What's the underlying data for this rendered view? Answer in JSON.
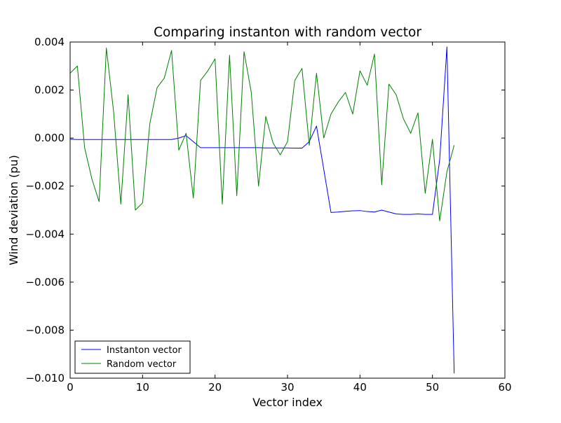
{
  "chart_data": {
    "type": "line",
    "title": "Comparing instanton with random vector",
    "xlabel": "Vector index",
    "ylabel": "Wind deviation (pu)",
    "xlim": [
      0,
      60
    ],
    "ylim": [
      -0.01,
      0.004
    ],
    "xticks": [
      0,
      10,
      20,
      30,
      40,
      50,
      60
    ],
    "xtick_labels": [
      "0",
      "10",
      "20",
      "30",
      "40",
      "50",
      "60"
    ],
    "yticks": [
      0.004,
      0.002,
      0.0,
      -0.002,
      -0.004,
      -0.006,
      -0.008,
      -0.01
    ],
    "ytick_labels": [
      "0.004",
      "0.002",
      "0.000",
      "−0.002",
      "−0.004",
      "−0.006",
      "−0.008",
      "−0.010"
    ],
    "grid": false,
    "legend_position": "lower-left",
    "series": [
      {
        "name": "Instanton vector",
        "color": "#0000ff",
        "x": [
          0,
          1,
          2,
          3,
          4,
          5,
          6,
          7,
          8,
          9,
          10,
          11,
          12,
          13,
          14,
          15,
          16,
          17,
          18,
          19,
          20,
          21,
          22,
          23,
          24,
          25,
          26,
          27,
          28,
          29,
          30,
          31,
          32,
          33,
          34,
          35,
          36,
          37,
          38,
          39,
          40,
          41,
          42,
          43,
          44,
          45,
          46,
          47,
          48,
          49,
          50,
          51,
          52,
          53
        ],
        "values": [
          -5e-05,
          -6e-05,
          -6e-05,
          -6e-05,
          -6e-05,
          -6e-05,
          -6e-05,
          -6e-05,
          -6e-05,
          -6e-05,
          -6e-05,
          -6e-05,
          -6e-05,
          -6e-05,
          -6e-05,
          0.0,
          0.0001,
          -0.00015,
          -0.0004,
          -0.0004,
          -0.0004,
          -0.0004,
          -0.0004,
          -0.0004,
          -0.0004,
          -0.0004,
          -0.0004,
          -0.00041,
          -0.00041,
          -0.00041,
          -0.00041,
          -0.00042,
          -0.00042,
          -0.00015,
          0.0005,
          -0.0013,
          -0.0031,
          -0.00308,
          -0.00305,
          -0.00303,
          -0.00302,
          -0.00306,
          -0.00308,
          -0.003,
          -0.00308,
          -0.00316,
          -0.00318,
          -0.00318,
          -0.00316,
          -0.00318,
          -0.00318,
          -0.0009,
          0.0038,
          -0.0098
        ]
      },
      {
        "name": "Random vector",
        "color": "#008000",
        "x": [
          0,
          1,
          2,
          3,
          4,
          5,
          6,
          7,
          8,
          9,
          10,
          11,
          12,
          13,
          14,
          15,
          16,
          17,
          18,
          19,
          20,
          21,
          22,
          23,
          24,
          25,
          26,
          27,
          28,
          29,
          30,
          31,
          32,
          33,
          34,
          35,
          36,
          37,
          38,
          39,
          40,
          41,
          42,
          43,
          44,
          45,
          46,
          47,
          48,
          49,
          50,
          51,
          52,
          53
        ],
        "values": [
          0.0027,
          0.003,
          -0.0004,
          -0.0017,
          -0.00265,
          0.00375,
          0.0011,
          -0.00275,
          0.0018,
          -0.003,
          -0.0027,
          0.0006,
          0.0021,
          0.0025,
          0.00365,
          -0.0005,
          0.0002,
          -0.0025,
          0.0024,
          0.0028,
          0.0033,
          -0.00275,
          0.00345,
          -0.0024,
          0.0036,
          0.0019,
          -0.002,
          0.0009,
          -0.0002,
          -0.0007,
          -0.00015,
          0.0024,
          0.0029,
          -0.0003,
          0.0027,
          0.0,
          0.001,
          0.0015,
          0.0019,
          0.001,
          0.0028,
          0.0022,
          0.0035,
          -0.00195,
          0.00225,
          0.0018,
          0.0008,
          0.0002,
          0.00105,
          -0.0023,
          -5e-05,
          -0.00345,
          -0.0014,
          -0.0003
        ]
      }
    ]
  }
}
